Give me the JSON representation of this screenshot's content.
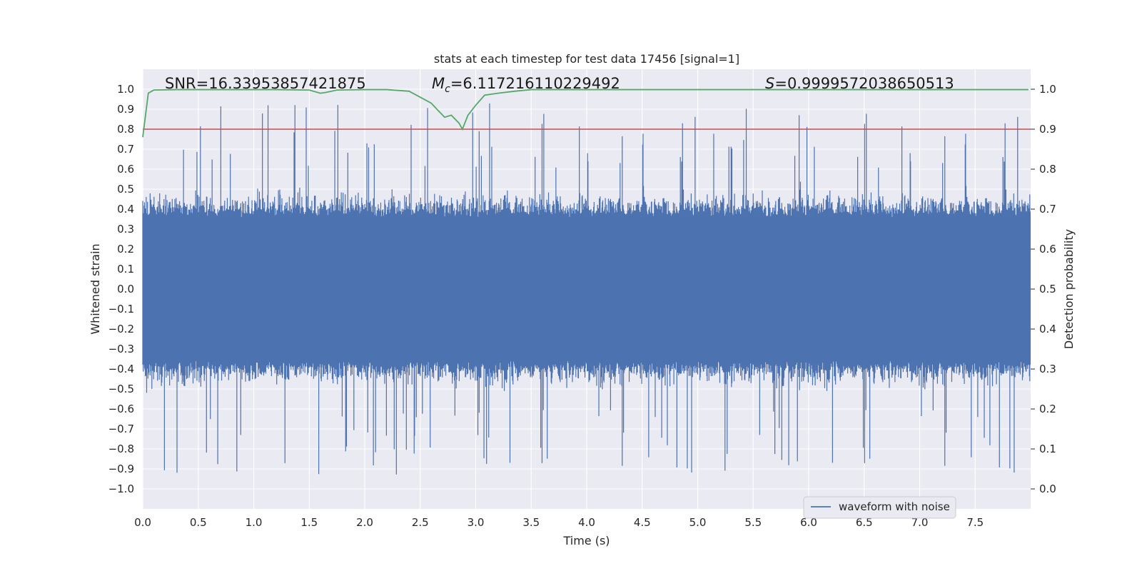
{
  "chart_data": {
    "type": "line",
    "title": "stats at each timestep for test data 17456 [signal=1]",
    "xlabel": "Time (s)",
    "ylabel_left": "Whitened strain",
    "ylabel_right": "Detection probability",
    "xlim": [
      0.0,
      8.0
    ],
    "ylim_left": [
      -1.1,
      1.1
    ],
    "ylim_right": [
      -0.05,
      1.05
    ],
    "xticks": [
      "0.0",
      "0.5",
      "1.0",
      "1.5",
      "2.0",
      "2.5",
      "3.0",
      "3.5",
      "4.0",
      "4.5",
      "5.0",
      "5.5",
      "6.0",
      "6.5",
      "7.0",
      "7.5"
    ],
    "xtick_values": [
      0.0,
      0.5,
      1.0,
      1.5,
      2.0,
      2.5,
      3.0,
      3.5,
      4.0,
      4.5,
      5.0,
      5.5,
      6.0,
      6.5,
      7.0,
      7.5
    ],
    "yticks_left": [
      "1.0",
      "0.9",
      "0.8",
      "0.7",
      "0.6",
      "0.5",
      "0.4",
      "0.3",
      "0.2",
      "0.1",
      "0.0",
      "−0.1",
      "−0.2",
      "−0.3",
      "−0.4",
      "−0.5",
      "−0.6",
      "−0.7",
      "−0.8",
      "−0.9",
      "−1.0"
    ],
    "ytick_values_left": [
      1.0,
      0.9,
      0.8,
      0.7,
      0.6,
      0.5,
      0.4,
      0.3,
      0.2,
      0.1,
      0.0,
      -0.1,
      -0.2,
      -0.3,
      -0.4,
      -0.5,
      -0.6,
      -0.7,
      -0.8,
      -0.9,
      -1.0
    ],
    "yticks_right": [
      "1.0",
      "0.9",
      "0.8",
      "0.7",
      "0.6",
      "0.5",
      "0.4",
      "0.3",
      "0.2",
      "0.1",
      "0.0"
    ],
    "ytick_values_right": [
      1.0,
      0.9,
      0.8,
      0.7,
      0.6,
      0.5,
      0.4,
      0.3,
      0.2,
      0.1,
      0.0
    ],
    "annotations": {
      "snr": "SNR=16.33953857421875",
      "mc_symbol": "M",
      "mc_sub": "c",
      "mc_value": "=6.117216110229492",
      "s_symbol": "S",
      "s_value": "=0.9999572038650513"
    },
    "legend": {
      "label": "waveform with noise",
      "position": "lower-right"
    },
    "colors": {
      "waveform": "#4c72b0",
      "probability": "#55a868",
      "threshold": "#c44e52",
      "background": "#eaeaf2",
      "grid": "#ffffff"
    },
    "series": [
      {
        "name": "waveform with noise",
        "kind": "dense-noise",
        "duration": 8.0,
        "samples": 2048,
        "core_amplitude": 0.36,
        "envelope_max": 1.0
      },
      {
        "name": "detection probability",
        "axis": "right",
        "x": [
          0.0,
          0.05,
          0.1,
          0.3,
          0.6,
          0.9,
          1.2,
          1.5,
          1.6,
          1.65,
          1.75,
          2.0,
          2.2,
          2.4,
          2.5,
          2.6,
          2.65,
          2.72,
          2.78,
          2.85,
          2.88,
          2.93,
          3.0,
          3.08,
          3.2,
          3.35,
          3.5,
          4.0,
          5.0,
          6.0,
          7.0,
          7.98
        ],
        "y": [
          0.88,
          0.99,
          0.998,
          0.999,
          0.999,
          0.999,
          0.999,
          0.998,
          0.99,
          0.992,
          0.998,
          0.999,
          0.999,
          0.995,
          0.98,
          0.965,
          0.95,
          0.93,
          0.935,
          0.915,
          0.9,
          0.935,
          0.96,
          0.985,
          0.99,
          0.995,
          0.999,
          0.999,
          0.999,
          0.999,
          0.999,
          0.999
        ]
      },
      {
        "name": "threshold",
        "axis": "right",
        "y": 0.9
      }
    ]
  }
}
